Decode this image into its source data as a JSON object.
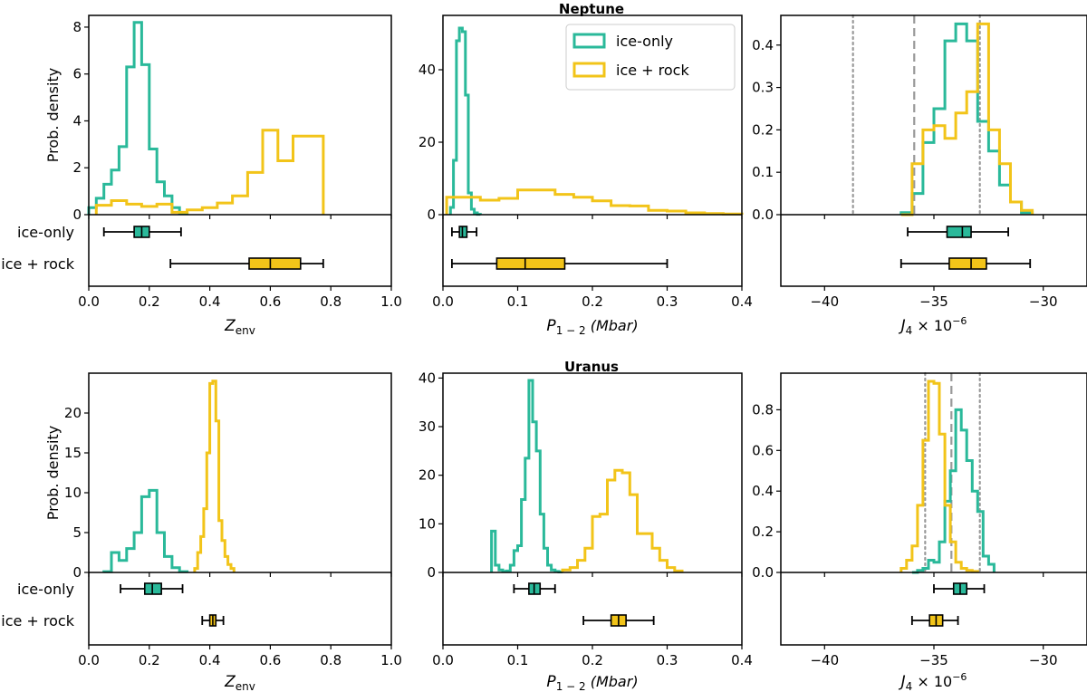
{
  "figure": {
    "row_titles": [
      "Neptune",
      "Uranus"
    ],
    "legend": [
      "ice-only",
      "ice + rock"
    ],
    "legend_location": "upper-right of Neptune P panel",
    "colors": {
      "ice_only": "#2ab99a",
      "ice_rock": "#f2c419",
      "ref_line": "#999999",
      "axis": "#000000"
    },
    "ylabel": "Prob. density",
    "box_labels": [
      "ice-only",
      "ice + rock"
    ],
    "xlabels": {
      "z": "Z",
      "z_sub": "env",
      "p": "P",
      "p_sub": "1 − 2",
      "p_unit": "(Mbar)",
      "j": "J",
      "j_sub": "4",
      "j_mult": "× 10",
      "j_exp": "−6"
    }
  },
  "chart_data": [
    {
      "type": "histogram+boxplot",
      "planet": "Neptune",
      "quantity": "Z_env",
      "xlim": [
        0,
        1.0
      ],
      "ylim": [
        0,
        8.5
      ],
      "xticks": [
        "0.0",
        "0.2",
        "0.4",
        "0.6",
        "0.8",
        "1.0"
      ],
      "yticks": [
        0,
        2,
        4,
        6,
        8
      ],
      "series": [
        {
          "name": "ice-only",
          "edges": [
            0,
            0.025,
            0.05,
            0.075,
            0.1,
            0.125,
            0.15,
            0.175,
            0.2,
            0.225,
            0.25,
            0.275,
            0.3,
            0.325
          ],
          "values": [
            0.3,
            0.7,
            1.3,
            1.9,
            2.9,
            6.3,
            8.2,
            6.4,
            2.8,
            1.4,
            0.8,
            0.3,
            0.05
          ]
        },
        {
          "name": "ice + rock",
          "edges": [
            0.025,
            0.075,
            0.125,
            0.175,
            0.225,
            0.275,
            0.325,
            0.375,
            0.425,
            0.475,
            0.525,
            0.575,
            0.625,
            0.675,
            0.725,
            0.775
          ],
          "values": [
            0.4,
            0.6,
            0.45,
            0.35,
            0.45,
            0.1,
            0.2,
            0.3,
            0.5,
            0.8,
            1.8,
            3.6,
            2.3,
            3.35,
            3.35
          ]
        }
      ],
      "boxes": [
        {
          "name": "ice-only",
          "whisker_low": 0.05,
          "q1": 0.15,
          "median": 0.175,
          "q3": 0.2,
          "whisker_high": 0.305
        },
        {
          "name": "ice + rock",
          "whisker_low": 0.27,
          "q1": 0.53,
          "median": 0.6,
          "q3": 0.7,
          "whisker_high": 0.775
        }
      ]
    },
    {
      "type": "histogram+boxplot",
      "planet": "Neptune",
      "quantity": "P_1-2",
      "xlim": [
        0,
        0.4
      ],
      "ylim": [
        0,
        55
      ],
      "xticks": [
        "0.0",
        "0.1",
        "0.2",
        "0.3",
        "0.4"
      ],
      "yticks": [
        0,
        20,
        40
      ],
      "series": [
        {
          "name": "ice-only",
          "edges": [
            0.01,
            0.014,
            0.018,
            0.022,
            0.026,
            0.03,
            0.034,
            0.038,
            0.042,
            0.046,
            0.05
          ],
          "values": [
            2.0,
            15.0,
            48.0,
            51.5,
            50.5,
            33.0,
            6.0,
            1.5,
            0.5,
            0.1
          ]
        },
        {
          "name": "ice + rock",
          "edges": [
            0.005,
            0.025,
            0.05,
            0.075,
            0.1,
            0.125,
            0.15,
            0.175,
            0.2,
            0.225,
            0.25,
            0.275,
            0.3,
            0.325,
            0.35,
            0.375,
            0.4
          ],
          "values": [
            4.8,
            4.8,
            4.0,
            4.5,
            6.8,
            6.8,
            5.6,
            4.8,
            3.8,
            2.5,
            2.4,
            1.2,
            1.0,
            0.5,
            0.3,
            0.2
          ]
        }
      ],
      "boxes": [
        {
          "name": "ice-only",
          "whisker_low": 0.012,
          "q1": 0.022,
          "median": 0.026,
          "q3": 0.032,
          "whisker_high": 0.045
        },
        {
          "name": "ice + rock",
          "whisker_low": 0.012,
          "q1": 0.072,
          "median": 0.11,
          "q3": 0.163,
          "whisker_high": 0.3
        }
      ]
    },
    {
      "type": "histogram+boxplot",
      "planet": "Neptune",
      "quantity": "J4",
      "xlim": [
        -42,
        -28
      ],
      "ylim": [
        0,
        0.47
      ],
      "xticks": [
        "−40",
        "−35",
        "−30"
      ],
      "yticks": [
        "0.0",
        "0.1",
        "0.2",
        "0.3",
        "0.4"
      ],
      "reference_lines": [
        {
          "style": "dotted",
          "x": -38.7
        },
        {
          "style": "dashed",
          "x": -35.9
        },
        {
          "style": "dotted",
          "x": -32.9
        }
      ],
      "series": [
        {
          "name": "ice-only",
          "edges": [
            -36.5,
            -36.0,
            -35.5,
            -35.0,
            -34.5,
            -34.0,
            -33.5,
            -33.0,
            -32.5,
            -32.0,
            -31.5,
            -31.0,
            -30.5
          ],
          "values": [
            0.005,
            0.05,
            0.17,
            0.25,
            0.41,
            0.45,
            0.41,
            0.22,
            0.15,
            0.07,
            0.03,
            0.005
          ]
        },
        {
          "name": "ice + rock",
          "edges": [
            -36.5,
            -36.0,
            -35.5,
            -35.0,
            -34.5,
            -34.0,
            -33.5,
            -33.0,
            -32.5,
            -32.0,
            -31.5,
            -31.0,
            -30.5
          ],
          "values": [
            0.0,
            0.12,
            0.2,
            0.21,
            0.18,
            0.24,
            0.29,
            0.45,
            0.2,
            0.12,
            0.03,
            0.01
          ]
        }
      ],
      "boxes": [
        {
          "name": "ice-only",
          "whisker_low": -36.2,
          "q1": -34.4,
          "median": -33.7,
          "q3": -33.3,
          "whisker_high": -31.6
        },
        {
          "name": "ice + rock",
          "whisker_low": -36.5,
          "q1": -34.3,
          "median": -33.3,
          "q3": -32.6,
          "whisker_high": -30.6
        }
      ]
    },
    {
      "type": "histogram+boxplot",
      "planet": "Uranus",
      "quantity": "Z_env",
      "xlim": [
        0,
        1.0
      ],
      "ylim": [
        0,
        25
      ],
      "xticks": [
        "0.0",
        "0.2",
        "0.4",
        "0.6",
        "0.8",
        "1.0"
      ],
      "yticks": [
        0,
        5,
        10,
        15,
        20
      ],
      "series": [
        {
          "name": "ice-only",
          "edges": [
            0.05,
            0.075,
            0.1,
            0.125,
            0.15,
            0.175,
            0.2,
            0.225,
            0.25,
            0.275,
            0.3,
            0.325
          ],
          "values": [
            0.1,
            2.5,
            1.5,
            3.0,
            5.0,
            9.5,
            10.3,
            5.0,
            2.0,
            0.6,
            0.1
          ]
        },
        {
          "name": "ice + rock",
          "edges": [
            0.35,
            0.36,
            0.37,
            0.38,
            0.39,
            0.4,
            0.41,
            0.42,
            0.43,
            0.44,
            0.45,
            0.46,
            0.47,
            0.48
          ],
          "values": [
            0.5,
            2.5,
            4.5,
            8.0,
            15.0,
            23.7,
            24.0,
            19.0,
            6.5,
            4.0,
            2.0,
            1.0,
            0.5
          ]
        }
      ],
      "boxes": [
        {
          "name": "ice-only",
          "whisker_low": 0.105,
          "q1": 0.185,
          "median": 0.21,
          "q3": 0.24,
          "whisker_high": 0.31
        },
        {
          "name": "ice + rock",
          "whisker_low": 0.375,
          "q1": 0.4,
          "median": 0.41,
          "q3": 0.42,
          "whisker_high": 0.445
        }
      ]
    },
    {
      "type": "histogram+boxplot",
      "planet": "Uranus",
      "quantity": "P_1-2",
      "xlim": [
        0,
        0.4
      ],
      "ylim": [
        0,
        41
      ],
      "xticks": [
        "0.0",
        "0.1",
        "0.2",
        "0.3",
        "0.4"
      ],
      "yticks": [
        0,
        10,
        20,
        30,
        40
      ],
      "series": [
        {
          "name": "ice-only",
          "edges": [
            0.065,
            0.07,
            0.075,
            0.08,
            0.085,
            0.09,
            0.095,
            0.1,
            0.105,
            0.11,
            0.115,
            0.12,
            0.125,
            0.13,
            0.135,
            0.14,
            0.145,
            0.15,
            0.155,
            0.16
          ],
          "values": [
            8.5,
            1.5,
            0.5,
            0.2,
            0.3,
            1.5,
            4.5,
            5.5,
            15.0,
            23.5,
            39.5,
            31.0,
            25.0,
            12.0,
            5.0,
            1.5,
            0.5,
            0.2,
            0.1
          ]
        },
        {
          "name": "ice + rock",
          "edges": [
            0.16,
            0.17,
            0.18,
            0.19,
            0.2,
            0.21,
            0.22,
            0.23,
            0.24,
            0.25,
            0.26,
            0.27,
            0.28,
            0.29,
            0.3,
            0.31,
            0.32
          ],
          "values": [
            0.5,
            1.0,
            2.5,
            5.0,
            11.5,
            12.0,
            19.0,
            21.0,
            20.5,
            16.0,
            8.0,
            8.0,
            5.0,
            2.5,
            1.0,
            0.3
          ]
        }
      ],
      "boxes": [
        {
          "name": "ice-only",
          "whisker_low": 0.095,
          "q1": 0.115,
          "median": 0.122,
          "q3": 0.13,
          "whisker_high": 0.15
        },
        {
          "name": "ice + rock",
          "whisker_low": 0.188,
          "q1": 0.225,
          "median": 0.235,
          "q3": 0.245,
          "whisker_high": 0.282
        }
      ]
    },
    {
      "type": "histogram+boxplot",
      "planet": "Uranus",
      "quantity": "J4",
      "xlim": [
        -42,
        -28
      ],
      "ylim": [
        0,
        0.98
      ],
      "xticks": [
        "−40",
        "−35",
        "−30"
      ],
      "yticks": [
        "0.0",
        "0.2",
        "0.4",
        "0.6",
        "0.8"
      ],
      "reference_lines": [
        {
          "style": "dotted",
          "x": -35.4
        },
        {
          "style": "dashed",
          "x": -34.2
        },
        {
          "style": "dotted",
          "x": -32.9
        }
      ],
      "series": [
        {
          "name": "ice-only",
          "edges": [
            -36.0,
            -35.75,
            -35.5,
            -35.25,
            -35.0,
            -34.75,
            -34.5,
            -34.25,
            -34.0,
            -33.75,
            -33.5,
            -33.25,
            -33.0,
            -32.75,
            -32.5,
            -32.25
          ],
          "values": [
            0.0,
            0.01,
            0.02,
            0.06,
            0.05,
            0.15,
            0.35,
            0.5,
            0.8,
            0.7,
            0.55,
            0.4,
            0.3,
            0.08,
            0.04
          ]
        },
        {
          "name": "ice + rock",
          "edges": [
            -36.5,
            -36.25,
            -36.0,
            -35.75,
            -35.5,
            -35.25,
            -35.0,
            -34.75,
            -34.5,
            -34.25,
            -34.0,
            -33.75,
            -33.5,
            -33.25,
            -33.0
          ],
          "values": [
            0.02,
            0.06,
            0.13,
            0.33,
            0.65,
            0.94,
            0.93,
            0.68,
            0.33,
            0.15,
            0.05,
            0.02,
            0.01,
            0.005
          ]
        }
      ],
      "boxes": [
        {
          "name": "ice-only",
          "whisker_low": -35.0,
          "q1": -34.1,
          "median": -33.8,
          "q3": -33.5,
          "whisker_high": -32.7
        },
        {
          "name": "ice + rock",
          "whisker_low": -36.0,
          "q1": -35.2,
          "median": -34.9,
          "q3": -34.6,
          "whisker_high": -33.9
        }
      ]
    }
  ]
}
